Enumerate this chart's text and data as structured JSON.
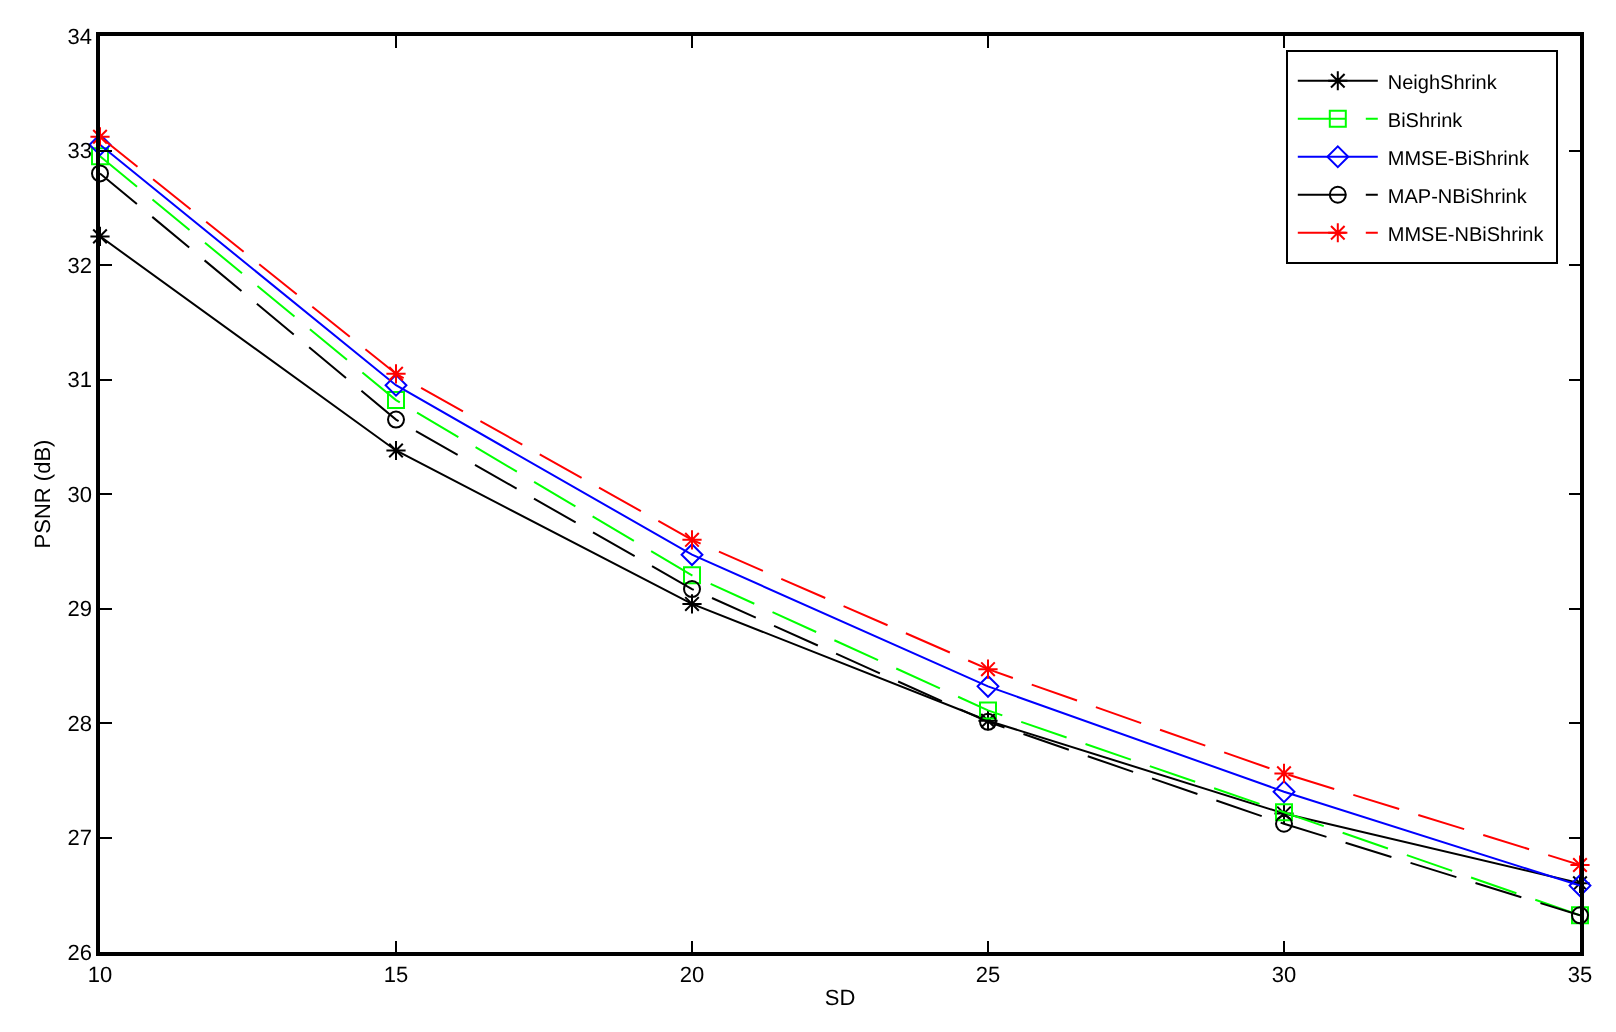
{
  "chart_data": {
    "type": "line",
    "xlabel": "SD",
    "ylabel": "PSNR (dB)",
    "x": [
      10,
      15,
      20,
      25,
      30,
      35
    ],
    "xlim": [
      10,
      35
    ],
    "xticks": [
      10,
      15,
      20,
      25,
      30,
      35
    ],
    "ylim": [
      26,
      34
    ],
    "yticks": [
      26,
      27,
      28,
      29,
      30,
      31,
      32,
      33,
      34
    ],
    "legend": "top right",
    "series": [
      {
        "name": "NeighShrink",
        "color": "#000000",
        "marker": "cross",
        "line_style": "solid",
        "values": [
          32.25,
          30.38,
          29.04,
          28.02,
          27.21,
          26.6
        ]
      },
      {
        "name": "BiShrink",
        "color": "#00ff00",
        "marker": "square",
        "line_style": "dashed",
        "values": [
          32.95,
          30.82,
          29.29,
          28.11,
          27.22,
          26.32
        ]
      },
      {
        "name": "MMSE-BiShrink",
        "color": "#0000ff",
        "marker": "diamond",
        "line_style": "solid",
        "values": [
          33.05,
          30.95,
          29.47,
          28.32,
          27.4,
          26.58
        ]
      },
      {
        "name": "MAP-NBiShrink",
        "color": "#000000",
        "marker": "circle",
        "line_style": "dashed",
        "values": [
          32.8,
          30.65,
          29.17,
          28.01,
          27.12,
          26.32
        ]
      },
      {
        "name": "MMSE-NBiShrink",
        "color": "#ff0000",
        "marker": "cross",
        "line_style": "dashed",
        "values": [
          33.12,
          31.05,
          29.6,
          28.47,
          27.56,
          26.76
        ]
      }
    ]
  }
}
